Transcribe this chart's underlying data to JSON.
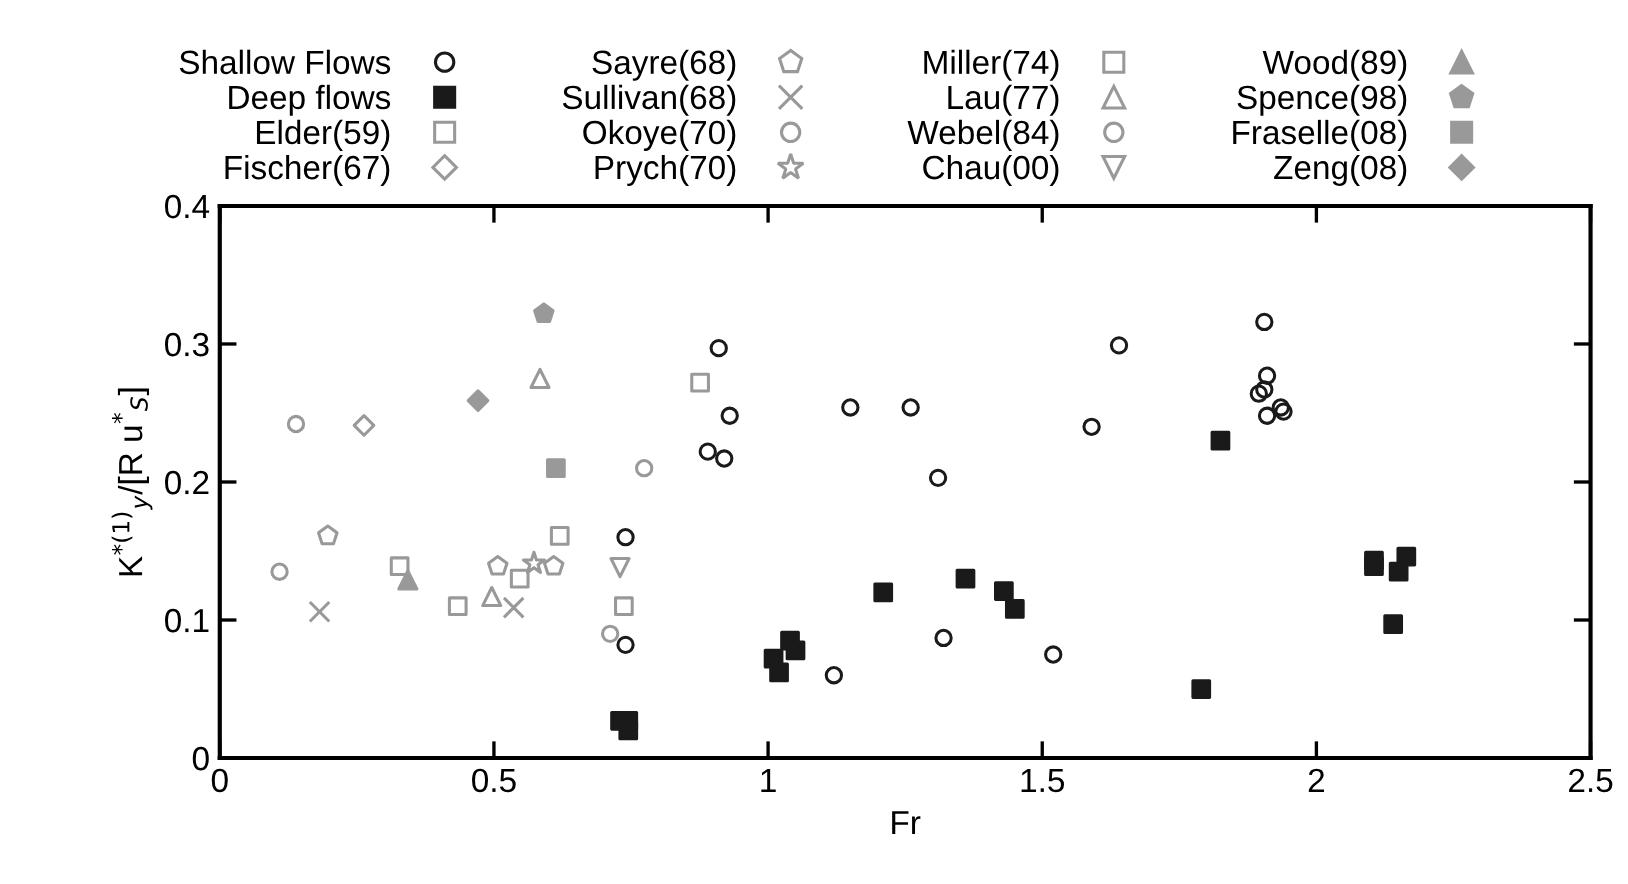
{
  "chart_data": {
    "type": "scatter",
    "xlabel": "Fr",
    "ylabel": "K$^{*(1)}$$_{y}$/[R u$^{*}$$_{S}$]",
    "xlim": [
      0,
      2.5
    ],
    "xticks": [
      0,
      0.5,
      1,
      1.5,
      2,
      2.5
    ],
    "ylim": [
      0,
      0.4
    ],
    "yticks": [
      0,
      0.1,
      0.2,
      0.3,
      0.4
    ],
    "grid": false,
    "legend": "top",
    "series": [
      {
        "name": "Shallow Flows",
        "color": "#1a1a1a",
        "marker": "circle",
        "x": [
          0.74,
          0.74,
          0.89,
          0.91,
          0.92,
          0.93,
          1.12,
          1.15,
          1.26,
          1.31,
          1.32,
          1.52,
          1.59,
          1.64,
          1.905,
          1.91,
          1.895,
          1.905,
          1.91,
          1.94,
          1.935
        ],
        "values": [
          0.16,
          0.082,
          0.222,
          0.297,
          0.217,
          0.248,
          0.06,
          0.254,
          0.254,
          0.203,
          0.087,
          0.075,
          0.24,
          0.299,
          0.316,
          0.277,
          0.264,
          0.267,
          0.248,
          0.251,
          0.254
        ]
      },
      {
        "name": "Deep flows",
        "color": "#1a1a1a",
        "marker": "square",
        "x": [
          0.73,
          0.745,
          0.745,
          1.01,
          1.02,
          1.04,
          1.05,
          1.21,
          1.36,
          1.43,
          1.45,
          1.79,
          1.825,
          2.105,
          2.105,
          2.15,
          2.164,
          2.14
        ],
        "values": [
          0.027,
          0.02,
          0.027,
          0.072,
          0.062,
          0.085,
          0.078,
          0.12,
          0.13,
          0.121,
          0.108,
          0.05,
          0.23,
          0.143,
          0.139,
          0.135,
          0.146,
          0.097
        ]
      },
      {
        "name": "Elder(59)",
        "color": "#999999",
        "marker": "square",
        "x": [
          0.434,
          0.62,
          0.737
        ],
        "values": [
          0.11,
          0.161,
          0.11
        ]
      },
      {
        "name": "Fischer(67)",
        "color": "#999999",
        "marker": "diamond",
        "x": [
          0.263
        ],
        "values": [
          0.241
        ]
      },
      {
        "name": "Sayre(68)",
        "color": "#999999",
        "x": [
          0.197,
          0.507,
          0.609
        ],
        "values": [
          0.161,
          0.139,
          0.139
        ]
      },
      {
        "name": "Sullivan(68)",
        "color": "#999999",
        "marker": "cross",
        "x": [
          0.182,
          0.536
        ],
        "values": [
          0.106,
          0.109
        ]
      },
      {
        "name": "Okoye(70)",
        "color": "#999999",
        "marker": "circle",
        "x": [
          0.774,
          0.712
        ],
        "values": [
          0.21,
          0.09
        ]
      },
      {
        "name": "Prych(70)",
        "color": "#999999",
        "marker": "star",
        "x": [
          0.573
        ],
        "values": [
          0.141
        ]
      },
      {
        "name": "Miller(74)",
        "color": "#999999",
        "marker": "square",
        "x": [
          0.328,
          0.547,
          0.876
        ],
        "values": [
          0.139,
          0.13,
          0.272
        ]
      },
      {
        "name": "Lau(77)",
        "color": "#999999",
        "marker": "triangle",
        "x": [
          0.584,
          0.496
        ],
        "values": [
          0.275,
          0.117
        ]
      },
      {
        "name": "Webel(84)",
        "color": "#999999",
        "marker": "circle",
        "x": [
          0.139,
          0.109
        ],
        "values": [
          0.242,
          0.135
        ]
      },
      {
        "name": "Chau(00)",
        "color": "#999999",
        "x": [
          0.73
        ],
        "values": [
          0.138
        ]
      },
      {
        "name": "Wood(89)",
        "color": "#999999",
        "marker": "triangle",
        "x": [
          0.343
        ],
        "values": [
          0.129
        ]
      },
      {
        "name": "Spence(98)",
        "color": "#999999",
        "x": [
          0.591
        ],
        "values": [
          0.322
        ]
      },
      {
        "name": "Fraselle(08)",
        "color": "#999999",
        "marker": "square",
        "x": [
          0.613
        ],
        "values": [
          0.21
        ]
      },
      {
        "name": "Zeng(08)",
        "color": "#999999",
        "marker": "diamond",
        "x": [
          0.471
        ],
        "values": [
          0.259
        ]
      }
    ]
  }
}
